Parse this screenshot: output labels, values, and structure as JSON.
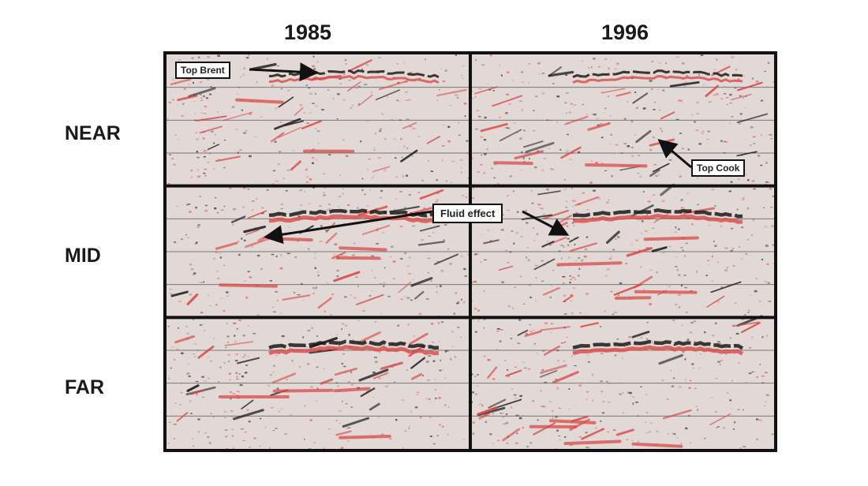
{
  "years": [
    "1985",
    "1996"
  ],
  "rows": [
    "NEAR",
    "MID",
    "FAR"
  ],
  "annotations": {
    "top_brent": "Top Brent",
    "top_cook": "Top Cook",
    "fluid_effect": "Fluid effect"
  },
  "colors": {
    "border": "#111111",
    "background": "#e2d9d7",
    "red_reflector": "#d94a48",
    "black_reflector": "#1a1a1a",
    "gridline": "#777777"
  }
}
